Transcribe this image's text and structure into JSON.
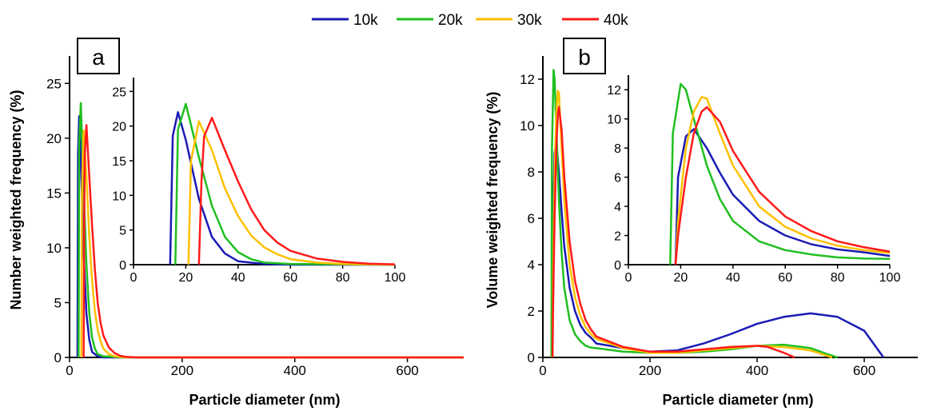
{
  "legend": {
    "entries": [
      {
        "name": "10k",
        "color": "#1a1ab4"
      },
      {
        "name": "20k",
        "color": "#1fbf1f"
      },
      {
        "name": "30k",
        "color": "#ffc000"
      },
      {
        "name": "40k",
        "color": "#ff1a1a"
      }
    ]
  },
  "chart_data": [
    {
      "panel_label": "a",
      "type": "line",
      "xlabel": "Particle diameter (nm)",
      "ylabel": "Number weighted frequency (%)",
      "xlim": [
        0,
        700
      ],
      "ylim": [
        0,
        27.5
      ],
      "xticks": [
        0,
        200,
        400,
        600
      ],
      "yticks": [
        0,
        5,
        10,
        15,
        20,
        25
      ],
      "series": [
        {
          "name": "10k",
          "color": "#1a1ab4",
          "x": [
            14,
            15,
            17,
            20,
            25,
            30,
            35,
            40,
            50,
            60,
            100,
            700
          ],
          "y": [
            0,
            18.6,
            22,
            18,
            9.5,
            4,
            1.6,
            0.5,
            0.1,
            0,
            0,
            0
          ]
        },
        {
          "name": "20k",
          "color": "#1fbf1f",
          "x": [
            16,
            17,
            20,
            25,
            30,
            35,
            40,
            45,
            50,
            60,
            100,
            700
          ],
          "y": [
            0,
            19.5,
            23.2,
            15.5,
            8.5,
            4,
            1.8,
            0.8,
            0.3,
            0.1,
            0,
            0
          ]
        },
        {
          "name": "30k",
          "color": "#ffc000",
          "x": [
            21,
            22,
            25,
            30,
            35,
            40,
            45,
            50,
            55,
            60,
            70,
            80,
            100,
            700
          ],
          "y": [
            0,
            15,
            20.7,
            16.5,
            11,
            7,
            4.2,
            2.5,
            1.5,
            0.8,
            0.3,
            0.1,
            0,
            0
          ]
        },
        {
          "name": "40k",
          "color": "#ff1a1a",
          "x": [
            25,
            26,
            27,
            30,
            35,
            40,
            45,
            50,
            55,
            60,
            70,
            80,
            90,
            100,
            120,
            700
          ],
          "y": [
            0,
            12,
            18.5,
            21.2,
            16.5,
            12,
            8,
            5,
            3.2,
            2,
            0.9,
            0.4,
            0.15,
            0.05,
            0,
            0
          ]
        }
      ],
      "inset": {
        "xlim": [
          0,
          100
        ],
        "ylim": [
          0,
          27
        ],
        "xticks": [
          0,
          20,
          40,
          60,
          80,
          100
        ],
        "yticks": [
          0,
          5,
          10,
          15,
          20,
          25
        ]
      }
    },
    {
      "panel_label": "b",
      "type": "line",
      "xlabel": "Particle diameter (nm)",
      "ylabel": "Volume weighted frequency (%)",
      "xlim": [
        0,
        700
      ],
      "ylim": [
        0,
        13
      ],
      "xticks": [
        0,
        200,
        400,
        600
      ],
      "yticks": [
        0,
        2,
        4,
        6,
        8,
        10,
        12
      ],
      "series": [
        {
          "name": "10k",
          "color": "#1a1ab4",
          "x": [
            18,
            19,
            22,
            25,
            30,
            35,
            40,
            50,
            60,
            70,
            80,
            90,
            100,
            150,
            200,
            250,
            300,
            350,
            400,
            450,
            500,
            550,
            600,
            636
          ],
          "y": [
            0,
            6,
            8.8,
            9.3,
            8,
            6.3,
            4.8,
            3,
            2,
            1.4,
            1.05,
            0.85,
            0.6,
            0.4,
            0.25,
            0.3,
            0.6,
            1.0,
            1.45,
            1.75,
            1.9,
            1.75,
            1.15,
            0
          ]
        },
        {
          "name": "20k",
          "color": "#1fbf1f",
          "x": [
            16,
            17,
            20,
            22,
            25,
            30,
            35,
            40,
            50,
            60,
            70,
            80,
            90,
            100,
            150,
            200,
            250,
            300,
            350,
            400,
            450,
            500,
            530,
            550
          ],
          "y": [
            0,
            9,
            12.4,
            12,
            10,
            6.8,
            4.5,
            3,
            1.6,
            1,
            0.7,
            0.5,
            0.42,
            0.4,
            0.25,
            0.2,
            0.2,
            0.25,
            0.35,
            0.5,
            0.55,
            0.4,
            0.15,
            0
          ]
        },
        {
          "name": "30k",
          "color": "#ffc000",
          "x": [
            18,
            19,
            22,
            25,
            28,
            30,
            35,
            40,
            50,
            60,
            70,
            80,
            90,
            100,
            150,
            200,
            250,
            300,
            350,
            400,
            450,
            500,
            540
          ],
          "y": [
            0,
            3,
            8,
            10.5,
            11.5,
            11.4,
            9,
            6.8,
            4,
            2.6,
            1.8,
            1.3,
            1,
            0.8,
            0.4,
            0.2,
            0.2,
            0.3,
            0.4,
            0.5,
            0.45,
            0.3,
            0
          ]
        },
        {
          "name": "40k",
          "color": "#ff1a1a",
          "x": [
            18,
            19,
            22,
            25,
            28,
            30,
            35,
            40,
            50,
            60,
            70,
            80,
            90,
            100,
            150,
            200,
            250,
            300,
            350,
            400,
            420,
            450,
            470
          ],
          "y": [
            0,
            2,
            6,
            9,
            10.5,
            10.8,
            9.8,
            7.8,
            5,
            3.3,
            2.3,
            1.6,
            1.2,
            0.9,
            0.45,
            0.25,
            0.25,
            0.35,
            0.45,
            0.5,
            0.45,
            0.2,
            0
          ]
        }
      ],
      "inset": {
        "xlim": [
          0,
          100
        ],
        "ylim": [
          0,
          13
        ],
        "xticks": [
          0,
          20,
          40,
          60,
          80,
          100
        ],
        "yticks": [
          0,
          2,
          4,
          6,
          8,
          10,
          12
        ]
      }
    }
  ]
}
